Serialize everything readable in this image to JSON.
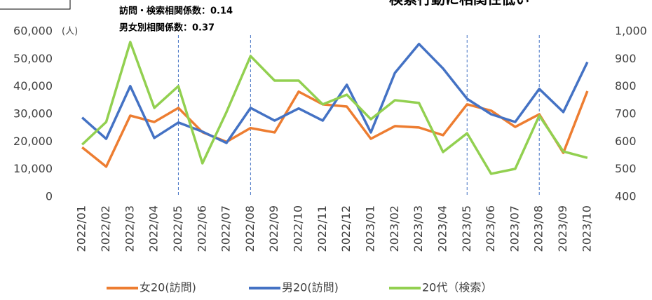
{
  "chart_data": {
    "type": "line",
    "title": "検索行動に相関性低い",
    "annotations": [
      "訪問・検索相関係数：0.14",
      "男女別相関係数：0.37"
    ],
    "y_unit": "(人)",
    "categories": [
      "2022/01",
      "2022/02",
      "2022/03",
      "2022/04",
      "2022/05",
      "2022/06",
      "2022/07",
      "2022/08",
      "2022/09",
      "2022/10",
      "2022/11",
      "2022/12",
      "2023/01",
      "2023/02",
      "2023/03",
      "2023/04",
      "2023/05",
      "2023/06",
      "2023/07",
      "2023/08",
      "2023/09",
      "2023/10"
    ],
    "series": [
      {
        "name": "女20(訪問)",
        "color": "#ED7D31",
        "values": [
          18000,
          11000,
          29500,
          27200,
          32300,
          23500,
          20000,
          25000,
          23400,
          38200,
          33600,
          32800,
          21100,
          25700,
          25200,
          22400,
          33600,
          31300,
          25400,
          30000,
          16000,
          38400
        ]
      },
      {
        "name": "男20(訪問)",
        "color": "#4472C4",
        "values": [
          28800,
          21100,
          40200,
          21400,
          27000,
          23700,
          19600,
          32300,
          27700,
          32100,
          27700,
          40700,
          23400,
          45000,
          55500,
          46600,
          35600,
          30000,
          27200,
          39200,
          30800,
          48900
        ]
      },
      {
        "name": "20代（検索）",
        "color": "#92D050",
        "axis": "y2",
        "values": [
          590,
          672,
          962,
          723,
          802,
          522,
          708,
          911,
          822,
          822,
          736,
          771,
          682,
          751,
          741,
          563,
          631,
          484,
          502,
          695,
          565,
          542
        ]
      }
    ],
    "ylim": [
      0,
      60000
    ],
    "yticks": [
      0,
      {
        "value": 10000,
        "label": "10,000"
      },
      {
        "value": 20000,
        "label": "20,000"
      },
      {
        "value": 30000,
        "label": "30,000"
      },
      {
        "value": 40000,
        "label": "40,000"
      },
      {
        "value": 50000,
        "label": "50,000"
      },
      {
        "value": 60000,
        "label": "60,000"
      }
    ],
    "y2lim": [
      400,
      1000
    ],
    "y2ticks": [
      400,
      500,
      600,
      700,
      800,
      900,
      {
        "value": 1000,
        "label": "1,000"
      }
    ],
    "dashed_lines_at": [
      4,
      7,
      16,
      19
    ],
    "dashed_line_color": "#4472C4",
    "legend": "bottom"
  }
}
